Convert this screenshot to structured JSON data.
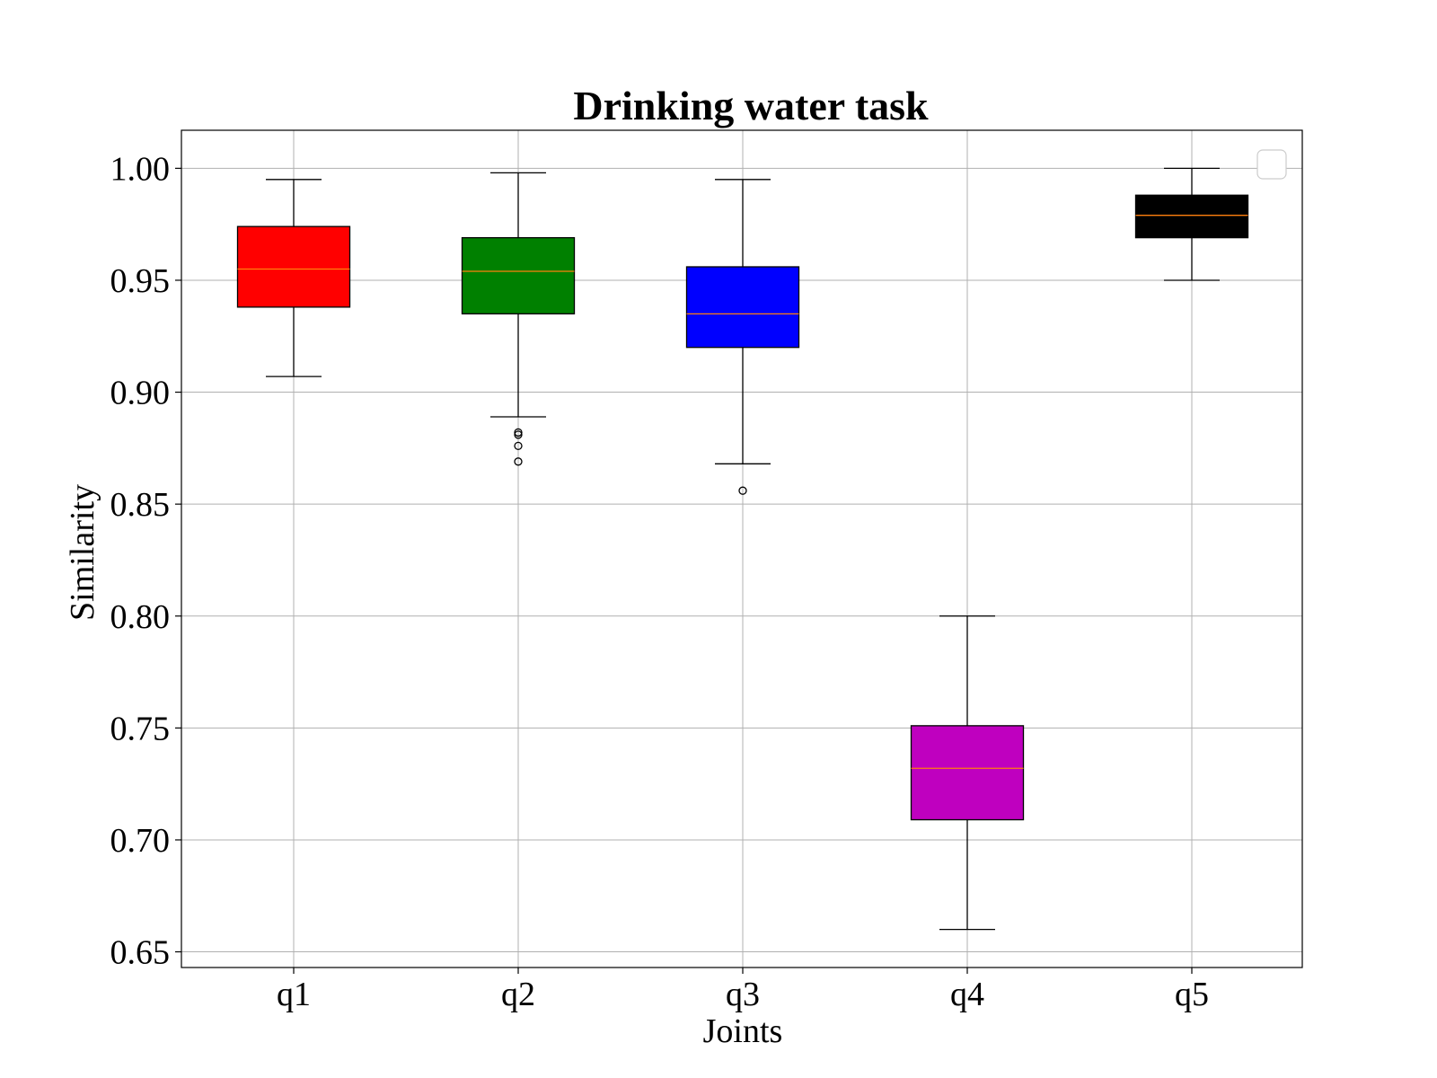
{
  "chart_data": {
    "type": "box",
    "title": "Drinking water task",
    "xlabel": "Joints",
    "ylabel": "Similarity",
    "ylim": [
      0.643,
      1.017
    ],
    "yticks": [
      "0.65",
      "0.70",
      "0.75",
      "0.80",
      "0.85",
      "0.90",
      "0.95",
      "1.00"
    ],
    "grid": true,
    "legend": "top-right, empty",
    "categories": [
      "q1",
      "q2",
      "q3",
      "q4",
      "q5"
    ],
    "boxes": [
      {
        "label": "q1",
        "whisker_low": 0.907,
        "q1": 0.938,
        "median": 0.955,
        "q3": 0.974,
        "whisker_high": 0.995,
        "outliers": [],
        "color": "#ff0000"
      },
      {
        "label": "q2",
        "whisker_low": 0.889,
        "q1": 0.935,
        "median": 0.954,
        "q3": 0.969,
        "whisker_high": 0.998,
        "outliers": [
          0.882,
          0.881,
          0.876,
          0.869
        ],
        "color": "#008000"
      },
      {
        "label": "q3",
        "whisker_low": 0.868,
        "q1": 0.92,
        "median": 0.935,
        "q3": 0.956,
        "whisker_high": 0.995,
        "outliers": [
          0.856
        ],
        "color": "#0000ff"
      },
      {
        "label": "q4",
        "whisker_low": 0.66,
        "q1": 0.709,
        "median": 0.732,
        "q3": 0.751,
        "whisker_high": 0.8,
        "outliers": [],
        "color": "#bf00bf"
      },
      {
        "label": "q5",
        "whisker_low": 0.95,
        "q1": 0.969,
        "median": 0.979,
        "q3": 0.988,
        "whisker_high": 1.0,
        "outliers": [],
        "color": "#000000"
      }
    ],
    "median_color": "#ff7f0e"
  }
}
